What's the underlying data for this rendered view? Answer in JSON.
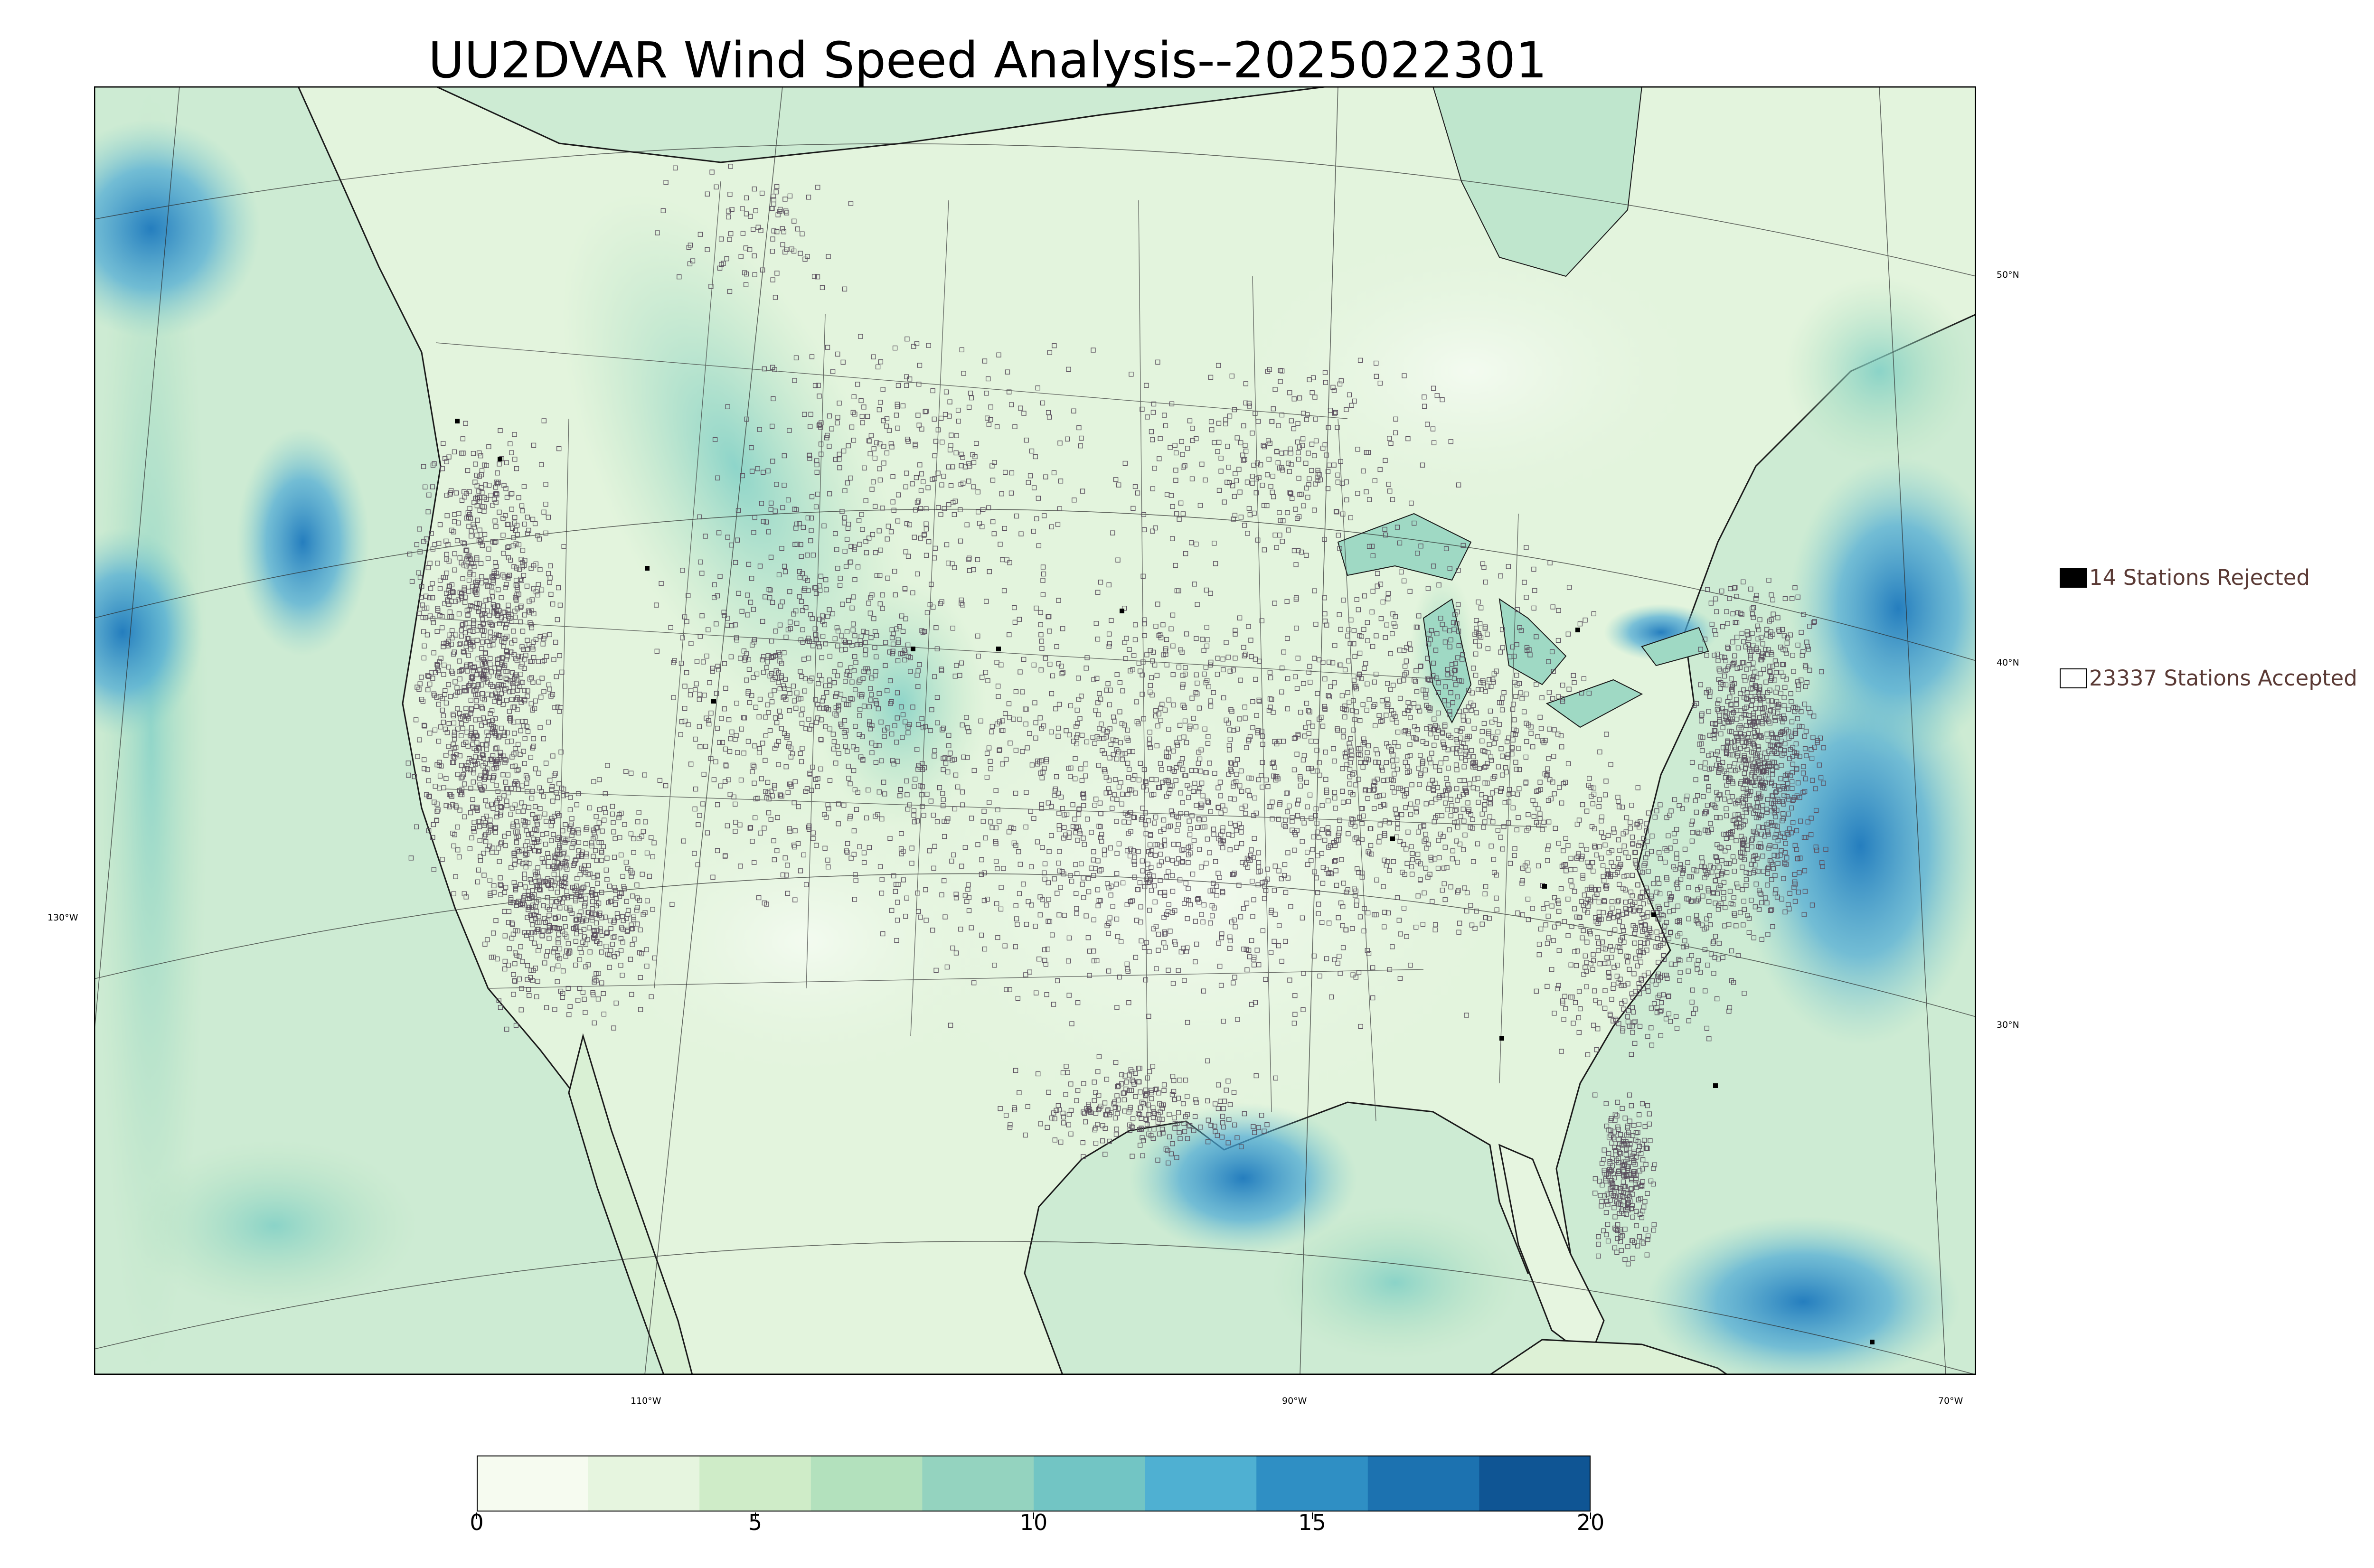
{
  "title": "UU2DVAR Wind Speed Analysis--2025022301",
  "graticule": {
    "lat_labels": [
      "50°N",
      "40°N",
      "30°N"
    ],
    "lon_labels": [
      "130°W",
      "110°W",
      "90°W",
      "70°W"
    ]
  },
  "legend": {
    "rejected": {
      "label": "14 Stations Rejected",
      "color": "#000000"
    },
    "accepted": {
      "label": "23337 Stations Accepted",
      "color": "#ffffff"
    }
  },
  "colorbar": {
    "min": 0,
    "max": 20,
    "ticks": [
      "0",
      "5",
      "10",
      "15",
      "20"
    ],
    "colors": [
      "#f6fbf0",
      "#e6f5df",
      "#cfecc8",
      "#b3e1bd",
      "#94d3bf",
      "#72c5c4",
      "#4fb0d2",
      "#2f8fc4",
      "#1c72b0",
      "#0f5594"
    ]
  },
  "colors": {
    "land_base": "#e1f3dc",
    "ocean_base": "#c9ead2",
    "strong_wind": "#2c8fc9",
    "station_outline": "#5b4f5e"
  }
}
